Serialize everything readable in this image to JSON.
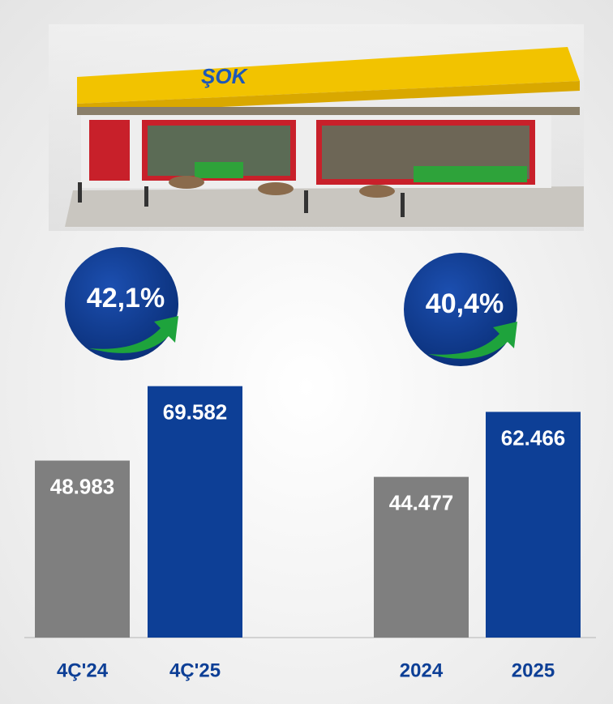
{
  "chart_data": [
    {
      "type": "bar",
      "categories": [
        "4Ç'24",
        "4Ç'25"
      ],
      "values": [
        48983,
        69582
      ],
      "value_labels": [
        "48.983",
        "69.582"
      ],
      "colors": [
        "#7f7f7f",
        "#0d3f96"
      ],
      "annotation": "42,1%"
    },
    {
      "type": "bar",
      "categories": [
        "2024",
        "2025"
      ],
      "values": [
        44477,
        62466
      ],
      "value_labels": [
        "44.477",
        "62.466"
      ],
      "colors": [
        "#7f7f7f",
        "#0d3f96"
      ],
      "annotation": "40,4%"
    }
  ]
}
